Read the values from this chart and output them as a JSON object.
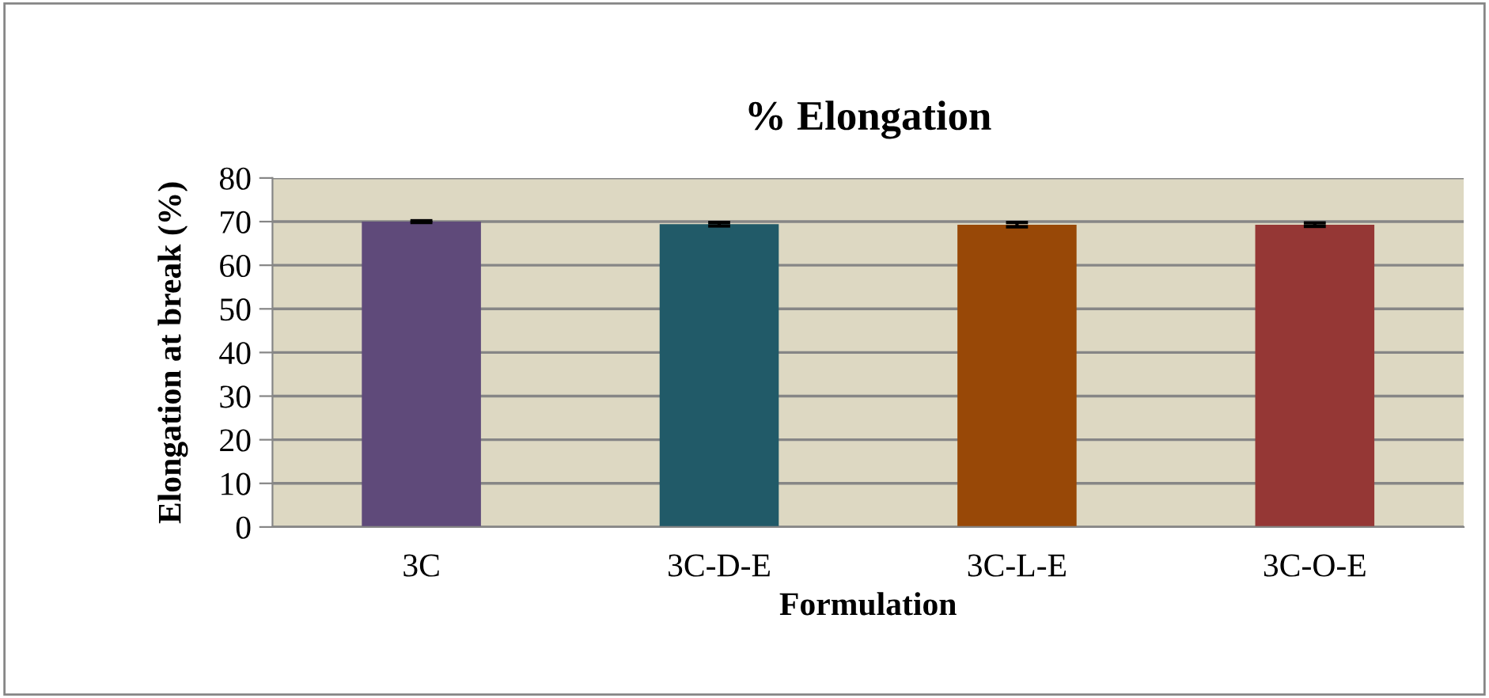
{
  "chart_data": {
    "type": "bar",
    "title": "% Elongation",
    "xlabel": "Formulation",
    "ylabel": "Elongation at break (%)",
    "categories": [
      "3C",
      "3C-D-E",
      "3C-L-E",
      "3C-O-E"
    ],
    "values": [
      70,
      69.4,
      69.3,
      69.3
    ],
    "colors": [
      "#5f4a7a",
      "#215a68",
      "#984807",
      "#953735"
    ],
    "errors": [
      0.2,
      0.4,
      0.5,
      0.4
    ],
    "ylim": [
      0,
      80
    ],
    "yticks": [
      0,
      10,
      20,
      30,
      40,
      50,
      60,
      70,
      80
    ],
    "grid": "y"
  }
}
